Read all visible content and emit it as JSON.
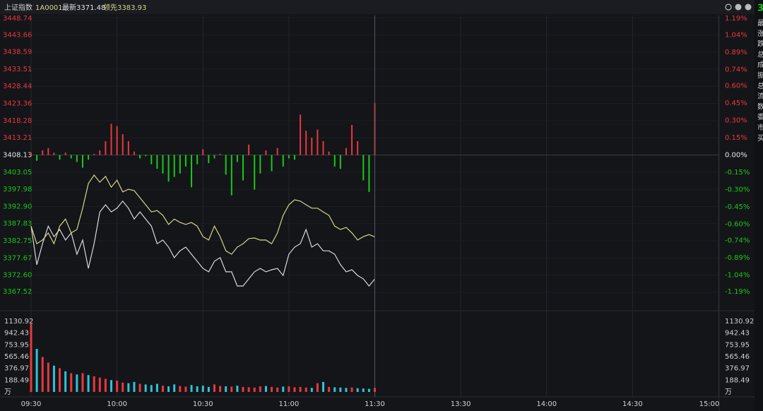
{
  "header": {
    "name": "上证指数",
    "code": "1A0001",
    "latest": "最新3371.48",
    "leading": "领先3383.93"
  },
  "sidebar": {
    "top": "3",
    "labels": [
      "最",
      "涨",
      "跌",
      "总",
      "成",
      "振",
      "总",
      "流",
      "数",
      "委",
      "市",
      "买"
    ]
  },
  "chart_data": [
    {
      "type": "line",
      "x": [
        0,
        2,
        4,
        6,
        8,
        10,
        12,
        14,
        16,
        18,
        20,
        22,
        24,
        26,
        28,
        30,
        32,
        34,
        36,
        38,
        40,
        42,
        44,
        46,
        48,
        50,
        52,
        54,
        56,
        58,
        60,
        62,
        64,
        66,
        68,
        70,
        72,
        74,
        76,
        78,
        80,
        82,
        84,
        86,
        88,
        90,
        92,
        94,
        96,
        98,
        100,
        102,
        104,
        106,
        108,
        110,
        112,
        114,
        116,
        118,
        120
      ],
      "xlim": [
        0,
        240
      ],
      "xticks": [
        {
          "value": 0,
          "label": "09:30"
        },
        {
          "value": 30,
          "label": "10:00"
        },
        {
          "value": 60,
          "label": "10:30"
        },
        {
          "value": 90,
          "label": "11:00"
        },
        {
          "value": 120,
          "label": "11:30"
        },
        {
          "value": 150,
          "label": "13:30"
        },
        {
          "value": 180,
          "label": "14:00"
        },
        {
          "value": 210,
          "label": "14:30"
        },
        {
          "value": 240,
          "label": "15:00"
        }
      ],
      "ylim": [
        3367.52,
        3448.74
      ],
      "yticks": [
        3448.74,
        3443.66,
        3438.59,
        3433.51,
        3428.44,
        3423.36,
        3418.28,
        3413.21,
        3408.13,
        3403.05,
        3397.98,
        {
          "value": 3392.9,
          "label": "3392.90"
        },
        3387.83,
        3382.75,
        3377.67,
        {
          "value": 3372.6,
          "label": "3372.60"
        },
        3367.52
      ],
      "y2lim": [
        -1.19,
        1.19
      ],
      "y2ticks": [
        {
          "value": 1.19,
          "label": "1.19%"
        },
        {
          "value": 1.04,
          "label": "1.04%"
        },
        {
          "value": 0.89,
          "label": "0.89%"
        },
        {
          "value": 0.74,
          "label": "0.74%"
        },
        {
          "value": 0.6,
          "label": "0.60%"
        },
        {
          "value": 0.45,
          "label": "0.45%"
        },
        {
          "value": 0.3,
          "label": "0.30%"
        },
        {
          "value": 0.15,
          "label": "0.15%"
        },
        {
          "value": 0,
          "label": "0.00%"
        },
        {
          "value": -0.15,
          "label": "-0.15%"
        },
        {
          "value": -0.3,
          "label": "-0.30%"
        },
        {
          "value": -0.45,
          "label": "-0.45%"
        },
        {
          "value": -0.6,
          "label": "-0.60%"
        },
        {
          "value": -0.74,
          "label": "-0.74%"
        },
        {
          "value": -0.89,
          "label": "-0.89%"
        },
        {
          "value": -1.04,
          "label": "-1.04%"
        },
        {
          "value": -1.19,
          "label": "-1.19%"
        }
      ],
      "up_color": "#e8383d",
      "down_color": "#19c819",
      "flat_color": "#e6e6e6",
      "grid": true,
      "series": [
        {
          "color": "#d9d9d9",
          "values": [
            3387.1,
            3375.7,
            3381.9,
            3387.1,
            3384.0,
            3386.1,
            3383.0,
            3385.1,
            3378.8,
            3383.0,
            3374.6,
            3381.9,
            3391.3,
            3393.4,
            3391.3,
            3392.4,
            3394.5,
            3392.4,
            3389.2,
            3391.3,
            3389.2,
            3387.1,
            3381.9,
            3383.0,
            3380.9,
            3377.8,
            3379.8,
            3380.9,
            3378.8,
            3376.7,
            3374.6,
            3373.6,
            3376.7,
            3377.8,
            3373.6,
            3373.6,
            3369.4,
            3369.4,
            3371.5,
            3373.6,
            3374.6,
            3373.6,
            3374.2,
            3374.6,
            3372.5,
            3378.8,
            3380.9,
            3381.9,
            3386.1,
            3380.9,
            3381.9,
            3379.8,
            3379.8,
            3378.8,
            3375.7,
            3373.6,
            3374.2,
            3372.5,
            3371.5,
            3369.4,
            3371.48
          ]
        },
        {
          "color": "#d6d48a",
          "values": [
            3387.1,
            3381.9,
            3383.0,
            3385.1,
            3381.9,
            3387.1,
            3389.2,
            3385.1,
            3386.1,
            3392.4,
            3399.7,
            3402.2,
            3400.1,
            3401.8,
            3398.6,
            3400.7,
            3397.2,
            3398.0,
            3397.6,
            3395.5,
            3393.4,
            3391.3,
            3391.7,
            3390.3,
            3387.6,
            3389.2,
            3388.2,
            3387.6,
            3388.2,
            3387.1,
            3384.0,
            3383.0,
            3387.1,
            3384.0,
            3379.8,
            3378.8,
            3380.9,
            3381.9,
            3383.4,
            3383.6,
            3383.0,
            3383.0,
            3381.9,
            3385.1,
            3390.3,
            3393.4,
            3394.9,
            3394.5,
            3393.4,
            3392.4,
            3392.4,
            3391.3,
            3390.3,
            3387.1,
            3386.1,
            3386.7,
            3385.1,
            3383.0,
            3384.0,
            3384.6,
            3383.93
          ]
        },
        {
          "type": "bar",
          "axis": "y2",
          "values": [
            0.02,
            -0.05,
            0.04,
            0.06,
            0.02,
            -0.04,
            0.02,
            -0.03,
            -0.06,
            -0.11,
            -0.04,
            0.01,
            0.04,
            0.12,
            0.27,
            0.25,
            0.18,
            0.12,
            0.03,
            -0.03,
            -0.01,
            -0.08,
            -0.12,
            -0.16,
            -0.23,
            -0.19,
            -0.16,
            -0.1,
            -0.28,
            -0.08,
            0.05,
            -0.07,
            -0.03,
            0.01,
            -0.17,
            -0.35,
            -0.06,
            -0.22,
            0.09,
            -0.3,
            -0.16,
            0.04,
            -0.14,
            0.06,
            -0.1,
            -0.03,
            -0.04,
            0.35,
            0.21,
            0.15,
            0.22,
            0.12,
            0.03,
            -0.1,
            -0.12,
            0.06,
            0.26,
            0.12,
            -0.22,
            -0.32,
            0.45
          ]
        }
      ]
    },
    {
      "type": "bar",
      "x": [
        0,
        2,
        4,
        6,
        8,
        10,
        12,
        14,
        16,
        18,
        20,
        22,
        24,
        26,
        28,
        30,
        32,
        34,
        36,
        38,
        40,
        42,
        44,
        46,
        48,
        50,
        52,
        54,
        56,
        58,
        60,
        62,
        64,
        66,
        68,
        70,
        72,
        74,
        76,
        78,
        80,
        82,
        84,
        86,
        88,
        90,
        92,
        94,
        96,
        98,
        100,
        102,
        104,
        106,
        108,
        110,
        112,
        114,
        116,
        118,
        120
      ],
      "values": [
        1100,
        690,
        560,
        470,
        420,
        380,
        330,
        300,
        280,
        300,
        270,
        250,
        230,
        210,
        190,
        180,
        150,
        140,
        160,
        130,
        120,
        110,
        130,
        100,
        90,
        120,
        95,
        85,
        110,
        90,
        100,
        80,
        120,
        95,
        90,
        85,
        100,
        80,
        75,
        70,
        90,
        95,
        80,
        70,
        85,
        90,
        75,
        80,
        70,
        65,
        140,
        160,
        80,
        75,
        70,
        65,
        70,
        60,
        55,
        50,
        65
      ],
      "ylim": [
        0,
        1130.92
      ],
      "yticks": [
        1130.92,
        942.43,
        753.95,
        565.46,
        376.97,
        188.49,
        {
          "value": 0,
          "label": "万"
        }
      ],
      "up_color": "#e8383d",
      "down_color": "#2cc5d6"
    }
  ]
}
